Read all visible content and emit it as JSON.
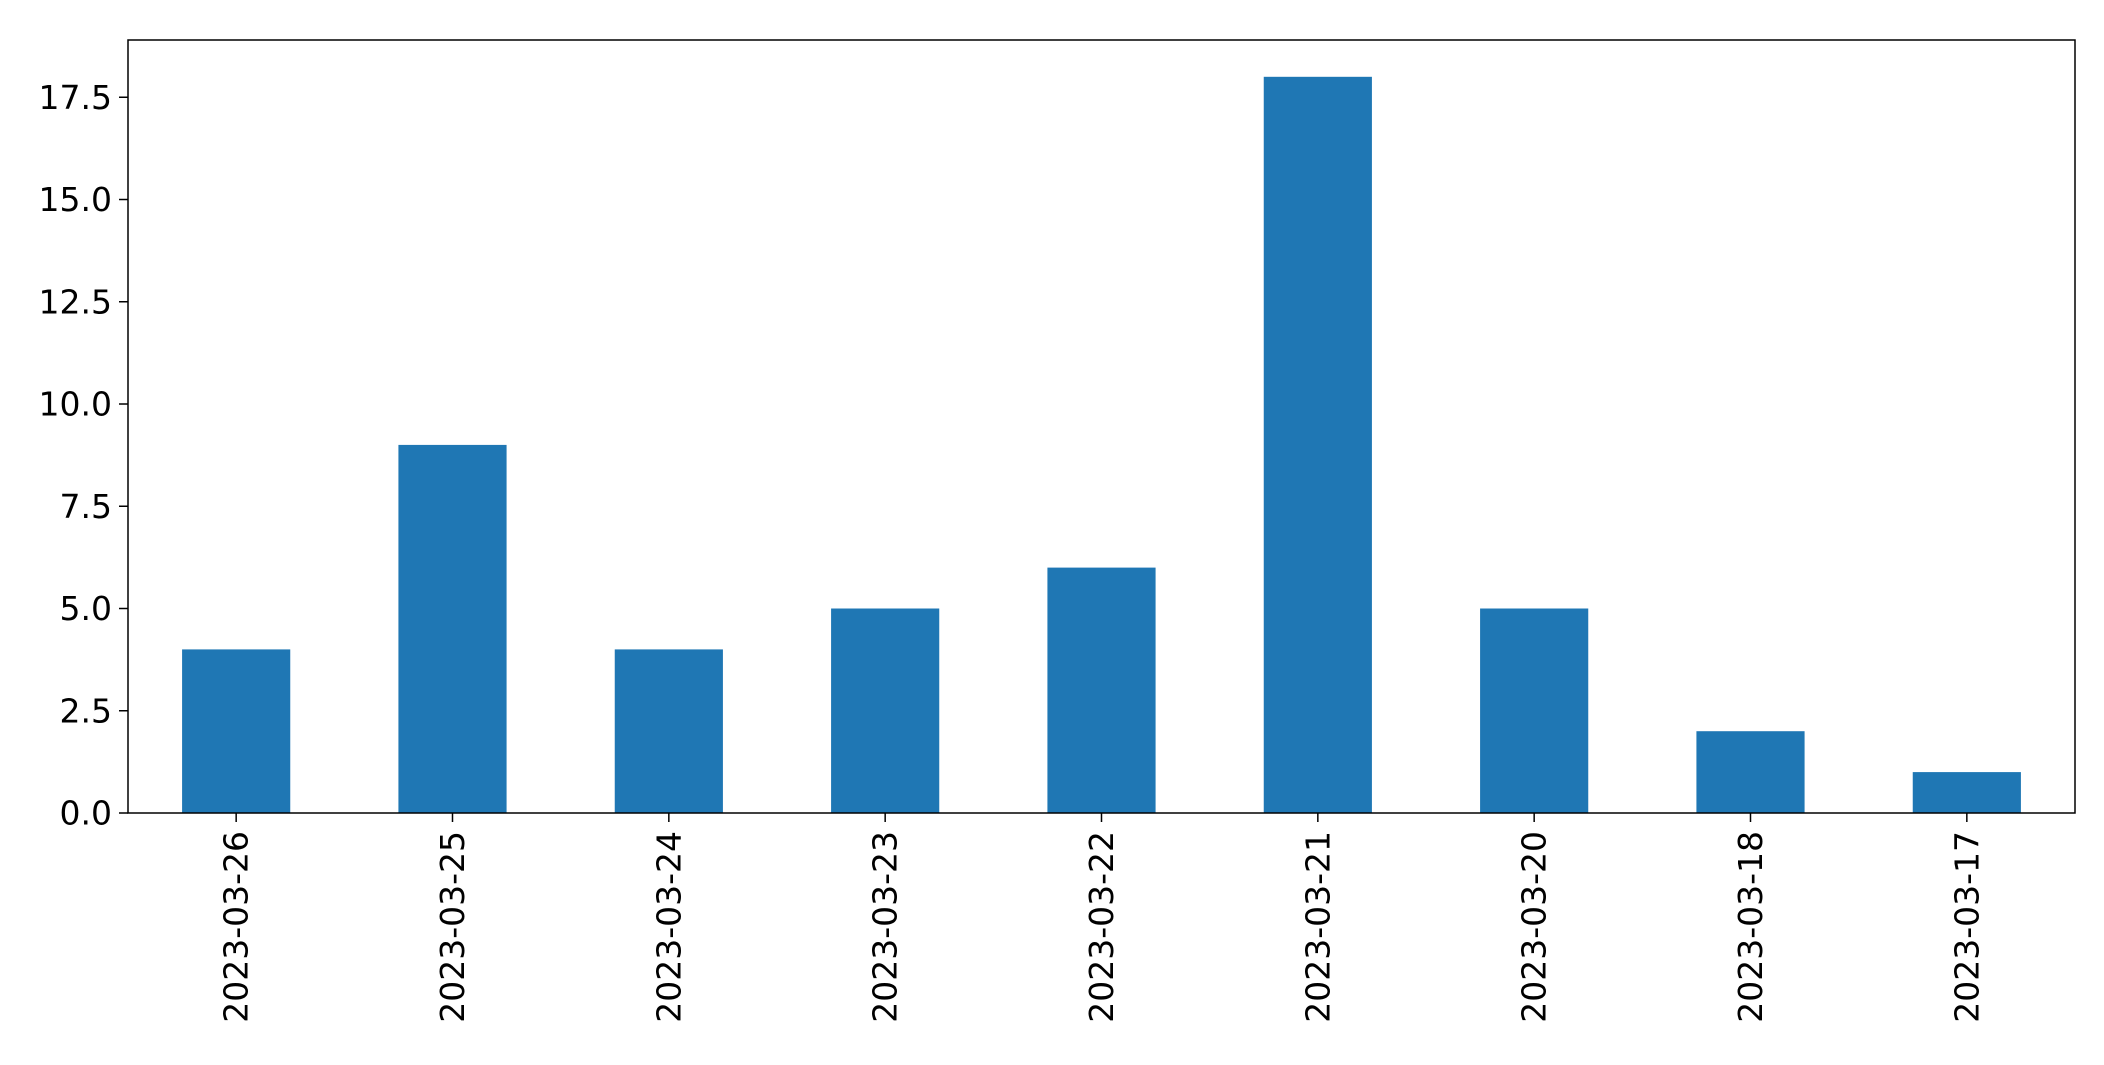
{
  "chart_data": {
    "type": "bar",
    "categories": [
      "2023-03-26",
      "2023-03-25",
      "2023-03-24",
      "2023-03-23",
      "2023-03-22",
      "2023-03-21",
      "2023-03-20",
      "2023-03-18",
      "2023-03-17"
    ],
    "values": [
      4,
      9,
      4,
      5,
      6,
      18,
      5,
      2,
      1
    ],
    "ylim": [
      0,
      18.9
    ],
    "yticks": [
      "0.0",
      "2.5",
      "5.0",
      "7.5",
      "10.0",
      "12.5",
      "15.0",
      "17.5"
    ],
    "grid": false,
    "bar_color": "#1f77b4",
    "axis_color": "#000000"
  }
}
